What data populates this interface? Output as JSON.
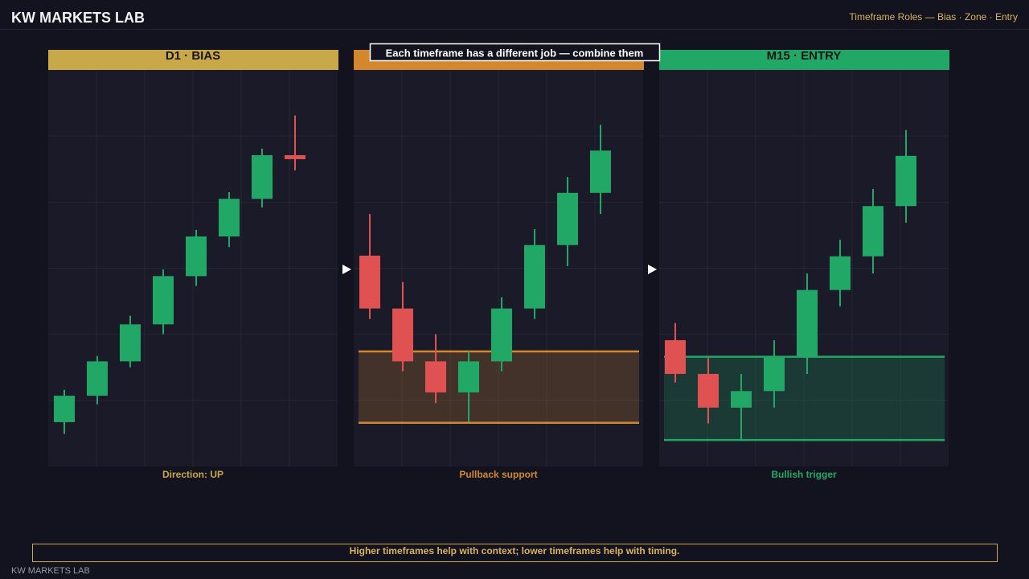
{
  "header": {
    "title": "KW MARKETS LAB",
    "subtitle": "Timeframe Roles — Bias · Zone · Entry"
  },
  "callout": "Each timeframe has a different job — combine them",
  "chart_data": [
    {
      "type": "candlestick",
      "title": "D1 · BIAS",
      "caption": "Direction: UP",
      "color": "#c9a84a",
      "up_color": "#22a866",
      "down_color": "#e05252",
      "ylim": [
        0,
        60
      ],
      "yticks": [
        10,
        20,
        30,
        40,
        50
      ],
      "grid": true,
      "open": [
        6.7,
        10.7,
        15.9,
        21.5,
        28.8,
        34.8,
        40.5,
        47.1
      ],
      "high": [
        11.6,
        16.7,
        22.8,
        29.8,
        35.8,
        41.5,
        48.1,
        53.1
      ],
      "low": [
        4.9,
        9.4,
        15.0,
        20.0,
        27.3,
        33.2,
        39.2,
        44.8
      ],
      "close": [
        10.7,
        15.9,
        21.5,
        28.8,
        34.8,
        40.5,
        47.1,
        46.5
      ]
    },
    {
      "type": "candlestick",
      "caption": "Pullback support",
      "color": "#d4882e",
      "up_color": "#22a866",
      "down_color": "#e05252",
      "ylim": [
        0,
        60
      ],
      "yticks": [
        10,
        20,
        30,
        40,
        50
      ],
      "grid": true,
      "open": [
        31.9,
        23.9,
        15.9,
        11.2,
        15.9,
        23.9,
        33.5,
        41.4
      ],
      "high": [
        38.2,
        27.9,
        20.0,
        17.4,
        25.6,
        35.9,
        43.8,
        51.7
      ],
      "low": [
        22.3,
        14.4,
        9.6,
        6.7,
        14.4,
        22.3,
        30.3,
        38.2
      ],
      "close": [
        23.9,
        15.9,
        11.2,
        15.9,
        23.9,
        33.5,
        41.4,
        47.8
      ],
      "zone": [
        6.6,
        17.4
      ]
    },
    {
      "type": "candlestick",
      "title": "M15 · ENTRY",
      "caption": "Bullish trigger",
      "color": "#22a866",
      "up_color": "#22a866",
      "down_color": "#e05252",
      "ylim": [
        0,
        60
      ],
      "yticks": [
        10,
        20,
        30,
        40,
        50
      ],
      "grid": true,
      "open": [
        19.1,
        14.0,
        8.9,
        11.4,
        16.6,
        26.7,
        31.8,
        39.4
      ],
      "high": [
        21.7,
        16.4,
        14.0,
        19.1,
        29.2,
        34.3,
        42.0,
        50.9
      ],
      "low": [
        12.7,
        6.5,
        4.0,
        8.9,
        14.0,
        24.2,
        29.2,
        36.9
      ],
      "close": [
        14.0,
        8.9,
        11.4,
        16.6,
        26.7,
        31.8,
        39.4,
        47.0
      ],
      "zone": [
        4.0,
        16.6
      ]
    }
  ],
  "footer": {
    "note": "Higher timeframes help with context; lower timeframes help with timing.",
    "brand": "KW MARKETS LAB"
  }
}
